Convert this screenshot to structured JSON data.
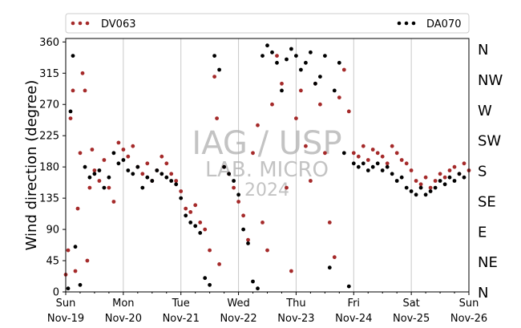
{
  "chart_data": {
    "type": "scatter",
    "ylabel": "Wind direction (degree)",
    "ylim": [
      0,
      365
    ],
    "yticks": [
      0,
      45,
      90,
      135,
      180,
      225,
      270,
      315,
      360
    ],
    "compass_labels": [
      "N",
      "NE",
      "E",
      "SE",
      "S",
      "SW",
      "W",
      "NW",
      "N"
    ],
    "xlim": [
      "2024-11-19",
      "2024-11-26"
    ],
    "xticks": [
      {
        "day": "Sun",
        "date": "Nov-19"
      },
      {
        "day": "Mon",
        "date": "Nov-20"
      },
      {
        "day": "Tue",
        "date": "Nov-21"
      },
      {
        "day": "Wed",
        "date": "Nov-22"
      },
      {
        "day": "Thu",
        "date": "Nov-23"
      },
      {
        "day": "Fri",
        "date": "Nov-24"
      },
      {
        "day": "Sat",
        "date": "Nov-25"
      },
      {
        "day": "Sun",
        "date": "Nov-26"
      }
    ],
    "grid": "vertical",
    "legend_position": "top",
    "watermark": {
      "line1": "IAG / USP",
      "line2": "LAB. MICRO",
      "line3": "2024"
    },
    "series": [
      {
        "name": "DV063",
        "color": "#a52a2a",
        "points": [
          [
            "2024-11-19 00:00",
            25
          ],
          [
            "2024-11-19 01:00",
            60
          ],
          [
            "2024-11-19 02:00",
            250
          ],
          [
            "2024-11-19 03:00",
            290
          ],
          [
            "2024-11-19 04:00",
            30
          ],
          [
            "2024-11-19 05:00",
            120
          ],
          [
            "2024-11-19 06:00",
            200
          ],
          [
            "2024-11-19 07:00",
            315
          ],
          [
            "2024-11-19 08:00",
            290
          ],
          [
            "2024-11-19 09:00",
            45
          ],
          [
            "2024-11-19 10:00",
            150
          ],
          [
            "2024-11-19 11:00",
            205
          ],
          [
            "2024-11-19 12:00",
            175
          ],
          [
            "2024-11-19 14:00",
            160
          ],
          [
            "2024-11-19 16:00",
            190
          ],
          [
            "2024-11-19 18:00",
            150
          ],
          [
            "2024-11-19 20:00",
            130
          ],
          [
            "2024-11-19 22:00",
            215
          ],
          [
            "2024-11-20 00:00",
            205
          ],
          [
            "2024-11-20 02:00",
            195
          ],
          [
            "2024-11-20 04:00",
            210
          ],
          [
            "2024-11-20 06:00",
            180
          ],
          [
            "2024-11-20 08:00",
            170
          ],
          [
            "2024-11-20 10:00",
            185
          ],
          [
            "2024-11-20 12:00",
            160
          ],
          [
            "2024-11-20 14:00",
            175
          ],
          [
            "2024-11-20 16:00",
            195
          ],
          [
            "2024-11-20 18:00",
            185
          ],
          [
            "2024-11-20 20:00",
            170
          ],
          [
            "2024-11-20 22:00",
            160
          ],
          [
            "2024-11-21 00:00",
            145
          ],
          [
            "2024-11-21 02:00",
            120
          ],
          [
            "2024-11-21 04:00",
            115
          ],
          [
            "2024-11-21 06:00",
            125
          ],
          [
            "2024-11-21 08:00",
            100
          ],
          [
            "2024-11-21 10:00",
            90
          ],
          [
            "2024-11-21 12:00",
            60
          ],
          [
            "2024-11-21 14:00",
            310
          ],
          [
            "2024-11-21 15:00",
            250
          ],
          [
            "2024-11-21 16:00",
            40
          ],
          [
            "2024-11-21 18:00",
            180
          ],
          [
            "2024-11-21 20:00",
            170
          ],
          [
            "2024-11-21 22:00",
            150
          ],
          [
            "2024-11-22 00:00",
            130
          ],
          [
            "2024-11-22 02:00",
            110
          ],
          [
            "2024-11-22 04:00",
            75
          ],
          [
            "2024-11-22 06:00",
            200
          ],
          [
            "2024-11-22 08:00",
            240
          ],
          [
            "2024-11-22 10:00",
            100
          ],
          [
            "2024-11-22 12:00",
            60
          ],
          [
            "2024-11-22 14:00",
            270
          ],
          [
            "2024-11-22 16:00",
            340
          ],
          [
            "2024-11-22 18:00",
            300
          ],
          [
            "2024-11-22 20:00",
            150
          ],
          [
            "2024-11-22 22:00",
            30
          ],
          [
            "2024-11-23 00:00",
            250
          ],
          [
            "2024-11-23 02:00",
            290
          ],
          [
            "2024-11-23 04:00",
            210
          ],
          [
            "2024-11-23 06:00",
            160
          ],
          [
            "2024-11-23 08:00",
            300
          ],
          [
            "2024-11-23 10:00",
            270
          ],
          [
            "2024-11-23 12:00",
            200
          ],
          [
            "2024-11-23 14:00",
            100
          ],
          [
            "2024-11-23 16:00",
            50
          ],
          [
            "2024-11-23 18:00",
            280
          ],
          [
            "2024-11-23 20:00",
            320
          ],
          [
            "2024-11-23 22:00",
            260
          ],
          [
            "2024-11-24 00:00",
            200
          ],
          [
            "2024-11-24 02:00",
            195
          ],
          [
            "2024-11-24 04:00",
            210
          ],
          [
            "2024-11-24 06:00",
            190
          ],
          [
            "2024-11-24 08:00",
            205
          ],
          [
            "2024-11-24 10:00",
            200
          ],
          [
            "2024-11-24 12:00",
            195
          ],
          [
            "2024-11-24 14:00",
            185
          ],
          [
            "2024-11-24 16:00",
            210
          ],
          [
            "2024-11-24 18:00",
            200
          ],
          [
            "2024-11-24 20:00",
            190
          ],
          [
            "2024-11-24 22:00",
            185
          ],
          [
            "2024-11-25 00:00",
            175
          ],
          [
            "2024-11-25 02:00",
            160
          ],
          [
            "2024-11-25 04:00",
            155
          ],
          [
            "2024-11-25 06:00",
            165
          ],
          [
            "2024-11-25 08:00",
            150
          ],
          [
            "2024-11-25 10:00",
            160
          ],
          [
            "2024-11-25 12:00",
            170
          ],
          [
            "2024-11-25 14:00",
            165
          ],
          [
            "2024-11-25 16:00",
            175
          ],
          [
            "2024-11-25 18:00",
            180
          ],
          [
            "2024-11-25 20:00",
            170
          ],
          [
            "2024-11-25 22:00",
            185
          ],
          [
            "2024-11-26 00:00",
            175
          ]
        ]
      },
      {
        "name": "DA070",
        "color": "#000000",
        "points": [
          [
            "2024-11-19 01:00",
            5
          ],
          [
            "2024-11-19 02:00",
            260
          ],
          [
            "2024-11-19 03:00",
            340
          ],
          [
            "2024-11-19 04:00",
            65
          ],
          [
            "2024-11-19 06:00",
            10
          ],
          [
            "2024-11-19 08:00",
            180
          ],
          [
            "2024-11-19 10:00",
            165
          ],
          [
            "2024-11-19 12:00",
            170
          ],
          [
            "2024-11-19 14:00",
            175
          ],
          [
            "2024-11-19 16:00",
            150
          ],
          [
            "2024-11-19 18:00",
            165
          ],
          [
            "2024-11-19 20:00",
            200
          ],
          [
            "2024-11-19 22:00",
            185
          ],
          [
            "2024-11-20 00:00",
            190
          ],
          [
            "2024-11-20 02:00",
            175
          ],
          [
            "2024-11-20 04:00",
            170
          ],
          [
            "2024-11-20 06:00",
            180
          ],
          [
            "2024-11-20 08:00",
            150
          ],
          [
            "2024-11-20 10:00",
            165
          ],
          [
            "2024-11-20 12:00",
            160
          ],
          [
            "2024-11-20 14:00",
            175
          ],
          [
            "2024-11-20 16:00",
            170
          ],
          [
            "2024-11-20 18:00",
            165
          ],
          [
            "2024-11-20 20:00",
            160
          ],
          [
            "2024-11-20 22:00",
            155
          ],
          [
            "2024-11-21 00:00",
            135
          ],
          [
            "2024-11-21 02:00",
            110
          ],
          [
            "2024-11-21 04:00",
            100
          ],
          [
            "2024-11-21 06:00",
            95
          ],
          [
            "2024-11-21 08:00",
            85
          ],
          [
            "2024-11-21 10:00",
            20
          ],
          [
            "2024-11-21 12:00",
            10
          ],
          [
            "2024-11-21 14:00",
            340
          ],
          [
            "2024-11-21 16:00",
            320
          ],
          [
            "2024-11-21 18:00",
            180
          ],
          [
            "2024-11-21 20:00",
            170
          ],
          [
            "2024-11-21 22:00",
            160
          ],
          [
            "2024-11-22 00:00",
            140
          ],
          [
            "2024-11-22 02:00",
            90
          ],
          [
            "2024-11-22 04:00",
            70
          ],
          [
            "2024-11-22 06:00",
            15
          ],
          [
            "2024-11-22 08:00",
            5
          ],
          [
            "2024-11-22 10:00",
            340
          ],
          [
            "2024-11-22 12:00",
            355
          ],
          [
            "2024-11-22 14:00",
            345
          ],
          [
            "2024-11-22 16:00",
            330
          ],
          [
            "2024-11-22 18:00",
            290
          ],
          [
            "2024-11-22 20:00",
            335
          ],
          [
            "2024-11-22 22:00",
            350
          ],
          [
            "2024-11-23 00:00",
            340
          ],
          [
            "2024-11-23 02:00",
            320
          ],
          [
            "2024-11-23 04:00",
            330
          ],
          [
            "2024-11-23 06:00",
            345
          ],
          [
            "2024-11-23 08:00",
            300
          ],
          [
            "2024-11-23 10:00",
            310
          ],
          [
            "2024-11-23 12:00",
            340
          ],
          [
            "2024-11-23 14:00",
            35
          ],
          [
            "2024-11-23 16:00",
            290
          ],
          [
            "2024-11-23 18:00",
            330
          ],
          [
            "2024-11-23 20:00",
            200
          ],
          [
            "2024-11-23 22:00",
            8
          ],
          [
            "2024-11-24 00:00",
            185
          ],
          [
            "2024-11-24 02:00",
            180
          ],
          [
            "2024-11-24 04:00",
            185
          ],
          [
            "2024-11-24 06:00",
            175
          ],
          [
            "2024-11-24 08:00",
            180
          ],
          [
            "2024-11-24 10:00",
            185
          ],
          [
            "2024-11-24 12:00",
            175
          ],
          [
            "2024-11-24 14:00",
            180
          ],
          [
            "2024-11-24 16:00",
            170
          ],
          [
            "2024-11-24 18:00",
            160
          ],
          [
            "2024-11-24 20:00",
            165
          ],
          [
            "2024-11-24 22:00",
            150
          ],
          [
            "2024-11-25 00:00",
            145
          ],
          [
            "2024-11-25 02:00",
            140
          ],
          [
            "2024-11-25 04:00",
            150
          ],
          [
            "2024-11-25 06:00",
            140
          ],
          [
            "2024-11-25 08:00",
            145
          ],
          [
            "2024-11-25 10:00",
            150
          ],
          [
            "2024-11-25 12:00",
            160
          ],
          [
            "2024-11-25 14:00",
            155
          ],
          [
            "2024-11-25 16:00",
            165
          ],
          [
            "2024-11-25 18:00",
            160
          ],
          [
            "2024-11-25 20:00",
            170
          ],
          [
            "2024-11-25 22:00",
            165
          ]
        ]
      }
    ]
  }
}
